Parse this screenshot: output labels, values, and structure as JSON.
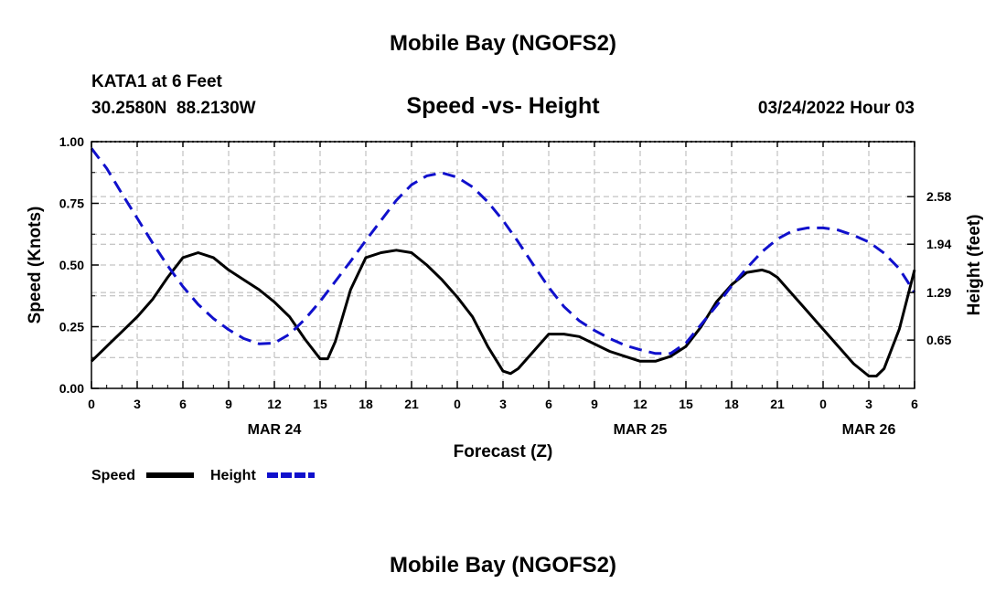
{
  "header": {
    "title": "Mobile Bay (NGOFS2)",
    "station": "KATA1 at 6 Feet",
    "coords": "30.2580N  88.2130W",
    "subtitle": "Speed -vs- Height",
    "datetime": "03/24/2022 Hour 03"
  },
  "footer": {
    "title": "Mobile Bay (NGOFS2)"
  },
  "chart_data": {
    "type": "line",
    "title": "Speed -vs- Height",
    "xlabel": "Forecast (Z)",
    "ylabel": "Speed (Knots)",
    "y2label": "Height (feet)",
    "x_unit": "hours from 2022-03-24 00Z",
    "xlim": [
      0,
      54
    ],
    "ylim": [
      0,
      1.0
    ],
    "y2lim": [
      0,
      3.32
    ],
    "x_ticks": [
      {
        "x": 0,
        "label": "0"
      },
      {
        "x": 3,
        "label": "3"
      },
      {
        "x": 6,
        "label": "6"
      },
      {
        "x": 9,
        "label": "9"
      },
      {
        "x": 12,
        "label": "12"
      },
      {
        "x": 15,
        "label": "15"
      },
      {
        "x": 18,
        "label": "18"
      },
      {
        "x": 21,
        "label": "21"
      },
      {
        "x": 24,
        "label": "0"
      },
      {
        "x": 27,
        "label": "3"
      },
      {
        "x": 30,
        "label": "6"
      },
      {
        "x": 33,
        "label": "9"
      },
      {
        "x": 36,
        "label": "12"
      },
      {
        "x": 39,
        "label": "15"
      },
      {
        "x": 42,
        "label": "18"
      },
      {
        "x": 45,
        "label": "21"
      },
      {
        "x": 48,
        "label": "0"
      },
      {
        "x": 51,
        "label": "3"
      },
      {
        "x": 54,
        "label": "6"
      }
    ],
    "date_labels": [
      {
        "x": 12,
        "label": "MAR 24"
      },
      {
        "x": 36,
        "label": "MAR 25"
      },
      {
        "x": 51,
        "label": "MAR 26"
      }
    ],
    "y_ticks": [
      {
        "v": 0.0,
        "label": "0.00"
      },
      {
        "v": 0.25,
        "label": "0.25"
      },
      {
        "v": 0.5,
        "label": "0.50"
      },
      {
        "v": 0.75,
        "label": "0.75"
      },
      {
        "v": 1.0,
        "label": "1.00"
      }
    ],
    "y2_ticks": [
      {
        "v": 0.65,
        "label": "0.65"
      },
      {
        "v": 1.29,
        "label": "1.29"
      },
      {
        "v": 1.94,
        "label": "1.94"
      },
      {
        "v": 2.58,
        "label": "2.58"
      }
    ],
    "grid": true,
    "legend": {
      "position": "bottom-left",
      "items": [
        {
          "name": "Speed",
          "color": "#000000",
          "style": "solid"
        },
        {
          "name": "Height",
          "color": "#1010cc",
          "style": "dashed"
        }
      ]
    },
    "series": [
      {
        "name": "Speed",
        "axis": "left",
        "color": "#000000",
        "style": "solid",
        "x": [
          0,
          1,
          2,
          3,
          4,
          5,
          6,
          7,
          8,
          9,
          10,
          11,
          12,
          13,
          14,
          15,
          15.5,
          16,
          17,
          18,
          19,
          20,
          21,
          22,
          23,
          24,
          25,
          26,
          27,
          27.5,
          28,
          29,
          30,
          31,
          32,
          33,
          34,
          35,
          36,
          37,
          38,
          39,
          40,
          41,
          42,
          43,
          44,
          44.5,
          45,
          46,
          47,
          48,
          49,
          50,
          51,
          51.5,
          52,
          53,
          54
        ],
        "y": [
          0.11,
          0.17,
          0.23,
          0.29,
          0.36,
          0.45,
          0.53,
          0.55,
          0.53,
          0.48,
          0.44,
          0.4,
          0.35,
          0.29,
          0.2,
          0.12,
          0.12,
          0.19,
          0.4,
          0.53,
          0.55,
          0.56,
          0.55,
          0.5,
          0.44,
          0.37,
          0.29,
          0.17,
          0.07,
          0.06,
          0.08,
          0.15,
          0.22,
          0.22,
          0.21,
          0.18,
          0.15,
          0.13,
          0.11,
          0.11,
          0.13,
          0.17,
          0.25,
          0.35,
          0.42,
          0.47,
          0.48,
          0.47,
          0.45,
          0.38,
          0.31,
          0.24,
          0.17,
          0.1,
          0.05,
          0.05,
          0.08,
          0.24,
          0.48
        ]
      },
      {
        "name": "Height",
        "axis": "right",
        "color": "#1010cc",
        "style": "dashed",
        "x": [
          0,
          1,
          2,
          3,
          4,
          5,
          6,
          7,
          8,
          9,
          10,
          11,
          12,
          13,
          14,
          15,
          16,
          17,
          18,
          19,
          20,
          21,
          22,
          23,
          24,
          25,
          26,
          27,
          28,
          29,
          30,
          31,
          32,
          33,
          34,
          35,
          36,
          37,
          38,
          39,
          40,
          41,
          42,
          43,
          44,
          45,
          46,
          47,
          48,
          49,
          50,
          51,
          52,
          53,
          54
        ],
        "y": [
          3.23,
          2.96,
          2.62,
          2.29,
          1.96,
          1.65,
          1.37,
          1.13,
          0.94,
          0.79,
          0.67,
          0.6,
          0.61,
          0.73,
          0.93,
          1.17,
          1.44,
          1.71,
          1.99,
          2.26,
          2.53,
          2.74,
          2.86,
          2.9,
          2.84,
          2.71,
          2.51,
          2.26,
          1.97,
          1.66,
          1.36,
          1.1,
          0.91,
          0.78,
          0.67,
          0.58,
          0.52,
          0.47,
          0.47,
          0.61,
          0.86,
          1.11,
          1.38,
          1.62,
          1.84,
          2.01,
          2.12,
          2.16,
          2.16,
          2.13,
          2.06,
          1.97,
          1.82,
          1.61,
          1.29
        ]
      }
    ]
  }
}
